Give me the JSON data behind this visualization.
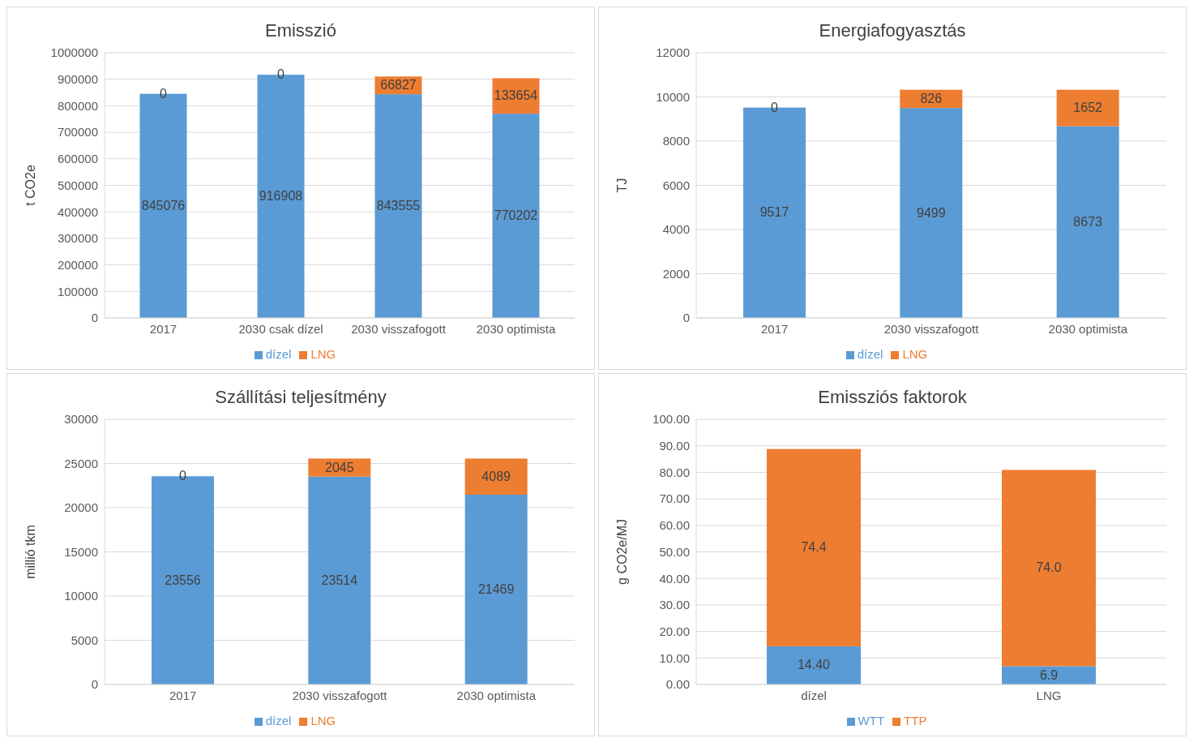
{
  "chart_data": [
    {
      "type": "bar",
      "title": "Emisszió",
      "ylabel": "t CO2e",
      "categories": [
        "2017",
        "2030 csak dízel",
        "2030 visszafogott",
        "2030 optimista"
      ],
      "stacked": true,
      "data_labels": true,
      "grid": "y",
      "legend": "bottom",
      "ylim": [
        0,
        1000000
      ],
      "yticks": [
        0,
        100000,
        200000,
        300000,
        400000,
        500000,
        600000,
        700000,
        800000,
        900000,
        1000000
      ],
      "series": [
        {
          "name": "dízel",
          "color": "#5b9bd5",
          "values": [
            845076,
            916908,
            843555,
            770202
          ]
        },
        {
          "name": "LNG",
          "color": "#ed7d31",
          "values": [
            0,
            0,
            66827,
            133654
          ]
        }
      ]
    },
    {
      "type": "bar",
      "title": "Energiafogyasztás",
      "ylabel": "TJ",
      "categories": [
        "2017",
        "2030 visszafogott",
        "2030 optimista"
      ],
      "stacked": true,
      "data_labels": true,
      "grid": "y",
      "legend": "bottom",
      "ylim": [
        0,
        12000
      ],
      "yticks": [
        0,
        2000,
        4000,
        6000,
        8000,
        10000,
        12000
      ],
      "series": [
        {
          "name": "dízel",
          "color": "#5b9bd5",
          "values": [
            9517,
            9499,
            8673
          ]
        },
        {
          "name": "LNG",
          "color": "#ed7d31",
          "values": [
            0,
            826,
            1652
          ]
        }
      ]
    },
    {
      "type": "bar",
      "title": "Szállítási teljesítmény",
      "ylabel": "millió tkm",
      "categories": [
        "2017",
        "2030 visszafogott",
        "2030 optimista"
      ],
      "stacked": true,
      "data_labels": true,
      "grid": "y",
      "legend": "bottom",
      "ylim": [
        0,
        30000
      ],
      "yticks": [
        0,
        5000,
        10000,
        15000,
        20000,
        25000,
        30000
      ],
      "series": [
        {
          "name": "dízel",
          "color": "#5b9bd5",
          "values": [
            23556,
            23514,
            21469
          ]
        },
        {
          "name": "LNG",
          "color": "#ed7d31",
          "values": [
            0,
            2045,
            4089
          ]
        }
      ]
    },
    {
      "type": "bar",
      "title": "Emissziós faktorok",
      "ylabel": "g CO2e/MJ",
      "categories": [
        "dízel",
        "LNG"
      ],
      "stacked": true,
      "grid": "y",
      "legend": "bottom",
      "ylim": [
        0,
        100
      ],
      "yticks": [
        {
          "value": 0,
          "label": "0.00"
        },
        {
          "value": 10,
          "label": "10.00"
        },
        {
          "value": 20,
          "label": "20.00"
        },
        {
          "value": 30,
          "label": "30.00"
        },
        {
          "value": 40,
          "label": "40.00"
        },
        {
          "value": 50,
          "label": "50.00"
        },
        {
          "value": 60,
          "label": "60.00"
        },
        {
          "value": 70,
          "label": "70.00"
        },
        {
          "value": 80,
          "label": "80.00"
        },
        {
          "value": 90,
          "label": "90.00"
        },
        {
          "value": 100,
          "label": "100.00"
        }
      ],
      "series": [
        {
          "name": "WTT",
          "color": "#5b9bd5",
          "values": [
            14.4,
            6.9
          ],
          "value_labels": [
            "14.40",
            "6.9"
          ]
        },
        {
          "name": "TTP",
          "color": "#ed7d31",
          "values": [
            74.4,
            74.0
          ],
          "value_labels": [
            "74.4",
            "74.0"
          ]
        }
      ]
    }
  ]
}
